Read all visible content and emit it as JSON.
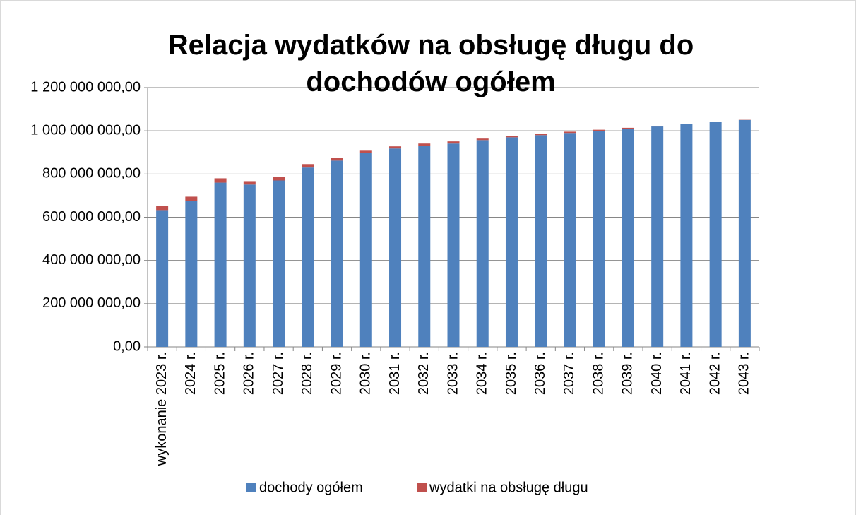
{
  "chart_data": {
    "type": "bar",
    "stacked": true,
    "title": "Relacja wydatków na obsługę długu do dochodów ogółem",
    "categories": [
      "wykonanie 2023 r.",
      "2024 r.",
      "2025 r.",
      "2026 r.",
      "2027 r.",
      "2028 r.",
      "2029 r.",
      "2030 r.",
      "2031 r.",
      "2032 r.",
      "2033 r.",
      "2034 r.",
      "2035 r.",
      "2036 r.",
      "2037 r.",
      "2038 r.",
      "2039 r.",
      "2040 r.",
      "2041 r.",
      "2042 r.",
      "2043 r."
    ],
    "series": [
      {
        "name": "dochody ogółem",
        "color": "#4f81bd",
        "values": [
          633000000,
          675000000,
          760000000,
          751000000,
          770000000,
          830000000,
          862000000,
          898000000,
          918000000,
          931000000,
          941000000,
          957000000,
          970000000,
          980000000,
          990000000,
          1000000000,
          1010000000,
          1020000000,
          1030000000,
          1040000000,
          1050000000
        ]
      },
      {
        "name": "wydatki na obsługę długu",
        "color": "#c0504d",
        "values": [
          20000000,
          20000000,
          20000000,
          16000000,
          16000000,
          16000000,
          13000000,
          10000000,
          10000000,
          10000000,
          10000000,
          7000000,
          7000000,
          6000000,
          6000000,
          5000000,
          4000000,
          3000000,
          2000000,
          2000000,
          1000000
        ]
      }
    ],
    "ylim": [
      0,
      1200000000
    ],
    "yticks": [
      {
        "value": 0,
        "label": "0,00"
      },
      {
        "value": 200000000,
        "label": "200 000 000,00"
      },
      {
        "value": 400000000,
        "label": "400 000 000,00"
      },
      {
        "value": 600000000,
        "label": "600 000 000,00"
      },
      {
        "value": 800000000,
        "label": "800 000 000,00"
      },
      {
        "value": 1000000000,
        "label": "1 000 000 000,00"
      },
      {
        "value": 1200000000,
        "label": "1 200 000 000,00"
      }
    ],
    "grid": true,
    "legend": "bottom"
  }
}
